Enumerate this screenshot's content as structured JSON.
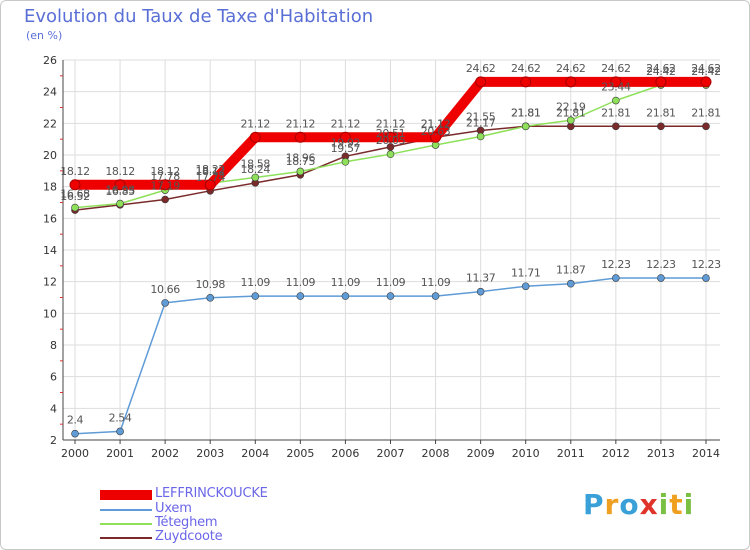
{
  "header": {
    "title": "Evolution du Taux de Taxe d'Habitation",
    "unit": "(en %)"
  },
  "brand": {
    "letters": [
      "P",
      "r",
      "o",
      "x",
      "i",
      "t",
      "i"
    ]
  },
  "chart_data": {
    "type": "line",
    "title": "Evolution du Taux de Taxe d'Habitation",
    "ylabel": "(en %)",
    "xlabel": "",
    "ylim": [
      2,
      26
    ],
    "yticks": [
      2,
      4,
      6,
      8,
      10,
      12,
      14,
      16,
      18,
      20,
      22,
      24,
      26
    ],
    "categories": [
      "2000",
      "2001",
      "2002",
      "2003",
      "2004",
      "2005",
      "2006",
      "2007",
      "2008",
      "2009",
      "2010",
      "2011",
      "2012",
      "2013",
      "2014"
    ],
    "series": [
      {
        "name": "LEFFRINCKOUCKE",
        "color": "#ee0000",
        "values": [
          18.12,
          18.12,
          18.12,
          18.12,
          21.12,
          21.12,
          21.12,
          21.12,
          21.12,
          24.62,
          24.62,
          24.62,
          24.62,
          24.62,
          24.62
        ],
        "labels": [
          "18.12",
          "18.12",
          "18.12",
          "18.12",
          "21.12",
          "21.12",
          "21.12",
          "21.12",
          "21.12",
          "24.62",
          "24.62",
          "24.62",
          "24.62",
          "24.62",
          "24.62"
        ]
      },
      {
        "name": "Uxem",
        "color": "#5f9bd6",
        "values": [
          2.4,
          2.54,
          10.66,
          10.98,
          11.09,
          11.09,
          11.09,
          11.09,
          11.09,
          11.37,
          11.71,
          11.87,
          12.23,
          12.23,
          12.23
        ],
        "labels": [
          "2.4",
          "2.54",
          "10.66",
          "10.98",
          "11.09",
          "11.09",
          "11.09",
          "11.09",
          "11.09",
          "11.37",
          "11.71",
          "11.87",
          "12.23",
          "12.23",
          "12.23"
        ]
      },
      {
        "name": "Téteghem",
        "color": "#8ee05a",
        "values": [
          16.68,
          16.93,
          17.78,
          18.22,
          18.58,
          18.96,
          19.57,
          20.05,
          20.63,
          21.17,
          21.81,
          22.19,
          23.44,
          24.42,
          24.42
        ],
        "labels": [
          "16.68",
          "16.93",
          "17.78",
          "18.22",
          "18.58",
          "18.96",
          "19.57",
          "20.05",
          "20.63",
          "21.17",
          "21.81",
          "22.19",
          "23.44",
          "24.42",
          "24.42"
        ]
      },
      {
        "name": "Zuydcoote",
        "color": "#7a2a2a",
        "values": [
          16.52,
          16.85,
          17.19,
          17.74,
          18.24,
          18.75,
          19.92,
          20.51,
          21.12,
          21.55,
          21.81,
          21.81,
          21.81,
          21.81,
          21.81
        ],
        "labels": [
          "16.52",
          "16.85",
          "17.19",
          "17.74",
          "18.24",
          "18.75",
          "19.92",
          "20.51",
          "21.12",
          "21.55",
          "21.81",
          "21.81",
          "21.81",
          "21.81",
          "21.81"
        ]
      }
    ],
    "legend": [
      "LEFFRINCKOUCKE",
      "Uxem",
      "Téteghem",
      "Zuydcoote"
    ],
    "legend_position": "bottom-left"
  }
}
